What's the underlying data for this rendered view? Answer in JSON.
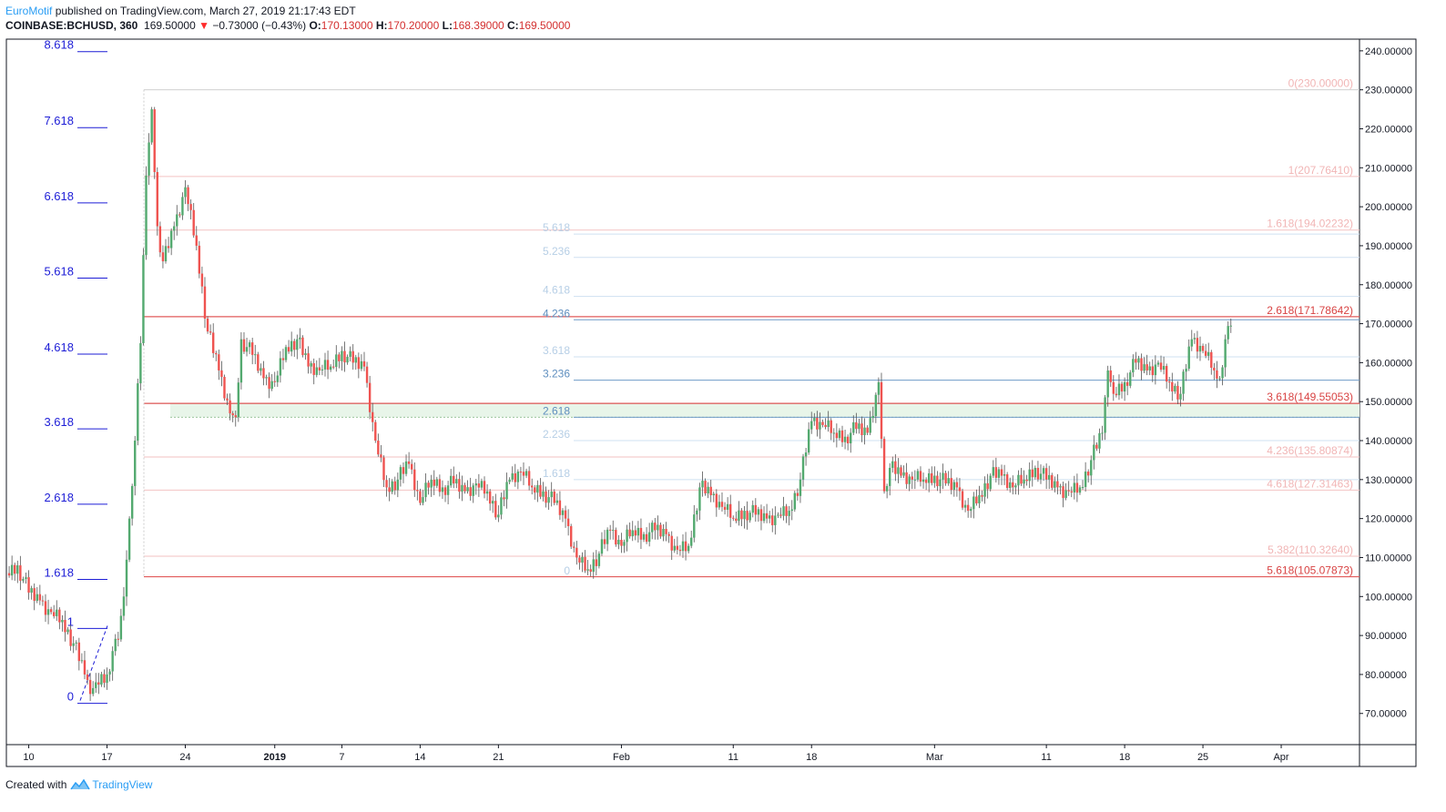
{
  "header": {
    "author": "EuroMotif",
    "published": " published on TradingView.com, March 27, 2019 21:17:43 EDT",
    "symbol": "COINBASE:BCHUSD, 360",
    "last": "169.50000",
    "change": "−0.73000 (−0.43%)",
    "o_label": "O:",
    "o": "170.13000",
    "h_label": "H:",
    "h": "170.20000",
    "l_label": "L:",
    "l": "168.39000",
    "c_label": "C:",
    "c": "169.50000"
  },
  "footer": {
    "created_with": "Created with",
    "brand": "TradingView",
    "brand_icon": "tradingview-logo-icon"
  },
  "colors": {
    "up": "#53a96f",
    "down": "#ef5350",
    "axis": "#131722",
    "fib_left": "#1d1dd6",
    "fib_red": "#e57373",
    "fib_blue": "#90b8e0",
    "zone_fill": "#e8f5e9",
    "zone_line": "#9c7a6a"
  },
  "chart_data": {
    "type": "candlestick",
    "y_axis": {
      "min": 62,
      "max": 243,
      "position": "right",
      "ticks": [
        240,
        230,
        220,
        210,
        200,
        190,
        180,
        170,
        160,
        150,
        140,
        130,
        120,
        110,
        100,
        90,
        80,
        70
      ],
      "tick_labels": [
        "240.00000",
        "230.00000",
        "220.00000",
        "210.00000",
        "200.00000",
        "190.00000",
        "180.00000",
        "170.00000",
        "160.00000",
        "150.00000",
        "140.00000",
        "130.00000",
        "120.00000",
        "110.00000",
        "100.00000",
        "90.00000",
        "80.00000",
        "70.00000"
      ]
    },
    "x_axis": {
      "start": "2018-12-08",
      "end": "2019-04-08",
      "ticks": [
        {
          "date": "2018-12-10",
          "label": "10",
          "bold": false
        },
        {
          "date": "2018-12-17",
          "label": "17",
          "bold": false
        },
        {
          "date": "2018-12-24",
          "label": "24",
          "bold": false
        },
        {
          "date": "2019-01-01",
          "label": "2019",
          "bold": true
        },
        {
          "date": "2019-01-07",
          "label": "7",
          "bold": false
        },
        {
          "date": "2019-01-14",
          "label": "14",
          "bold": false
        },
        {
          "date": "2019-01-21",
          "label": "21",
          "bold": false
        },
        {
          "date": "2019-02-01",
          "label": "Feb",
          "bold": false
        },
        {
          "date": "2019-02-11",
          "label": "11",
          "bold": false
        },
        {
          "date": "2019-02-18",
          "label": "18",
          "bold": false
        },
        {
          "date": "2019-03-01",
          "label": "Mar",
          "bold": false
        },
        {
          "date": "2019-03-11",
          "label": "11",
          "bold": false
        },
        {
          "date": "2019-03-18",
          "label": "18",
          "bold": false
        },
        {
          "date": "2019-03-25",
          "label": "25",
          "bold": false
        },
        {
          "date": "2019-04-01",
          "label": "Apr",
          "bold": false
        }
      ]
    },
    "price_path": [
      {
        "date": "2018-12-08",
        "close": 106
      },
      {
        "date": "2018-12-09",
        "close": 108
      },
      {
        "date": "2018-12-10",
        "close": 101
      },
      {
        "date": "2018-12-11",
        "close": 99
      },
      {
        "date": "2018-12-12",
        "close": 96
      },
      {
        "date": "2018-12-13",
        "close": 94
      },
      {
        "date": "2018-12-14",
        "close": 88
      },
      {
        "date": "2018-12-15",
        "close": 80
      },
      {
        "date": "2018-12-15T12:00",
        "close": 75
      },
      {
        "date": "2018-12-16",
        "close": 78
      },
      {
        "date": "2018-12-17",
        "close": 80
      },
      {
        "date": "2018-12-17T12:00",
        "close": 86
      },
      {
        "date": "2018-12-18",
        "close": 89
      },
      {
        "date": "2018-12-18T12:00",
        "close": 100
      },
      {
        "date": "2018-12-19",
        "close": 120
      },
      {
        "date": "2018-12-19T12:00",
        "close": 140
      },
      {
        "date": "2018-12-20",
        "close": 165
      },
      {
        "date": "2018-12-20T12:00",
        "close": 208
      },
      {
        "date": "2018-12-21",
        "close": 225
      },
      {
        "date": "2018-12-21T12:00",
        "close": 195
      },
      {
        "date": "2018-12-22",
        "close": 186
      },
      {
        "date": "2018-12-23",
        "close": 195
      },
      {
        "date": "2018-12-24",
        "close": 205
      },
      {
        "date": "2018-12-25",
        "close": 190
      },
      {
        "date": "2018-12-26",
        "close": 168
      },
      {
        "date": "2018-12-27",
        "close": 158
      },
      {
        "date": "2018-12-28",
        "close": 147
      },
      {
        "date": "2018-12-28T12:00",
        "close": 146
      },
      {
        "date": "2018-12-29",
        "close": 166
      },
      {
        "date": "2018-12-30",
        "close": 162
      },
      {
        "date": "2018-12-31",
        "close": 156
      },
      {
        "date": "2019-01-01",
        "close": 155
      },
      {
        "date": "2019-01-02",
        "close": 164
      },
      {
        "date": "2019-01-03",
        "close": 166
      },
      {
        "date": "2019-01-04",
        "close": 159
      },
      {
        "date": "2019-01-05",
        "close": 158
      },
      {
        "date": "2019-01-06",
        "close": 159
      },
      {
        "date": "2019-01-07",
        "close": 163
      },
      {
        "date": "2019-01-08",
        "close": 160
      },
      {
        "date": "2019-01-09",
        "close": 159
      },
      {
        "date": "2019-01-10",
        "close": 140
      },
      {
        "date": "2019-01-11",
        "close": 128
      },
      {
        "date": "2019-01-12",
        "close": 130
      },
      {
        "date": "2019-01-13",
        "close": 134
      },
      {
        "date": "2019-01-14",
        "close": 124
      },
      {
        "date": "2019-01-15",
        "close": 130
      },
      {
        "date": "2019-01-16",
        "close": 128
      },
      {
        "date": "2019-01-17",
        "close": 129
      },
      {
        "date": "2019-01-18",
        "close": 127
      },
      {
        "date": "2019-01-19",
        "close": 129
      },
      {
        "date": "2019-01-20",
        "close": 127
      },
      {
        "date": "2019-01-21",
        "close": 121
      },
      {
        "date": "2019-01-22",
        "close": 130
      },
      {
        "date": "2019-01-23",
        "close": 132
      },
      {
        "date": "2019-01-24",
        "close": 128
      },
      {
        "date": "2019-01-25",
        "close": 127
      },
      {
        "date": "2019-01-26",
        "close": 124
      },
      {
        "date": "2019-01-27",
        "close": 120
      },
      {
        "date": "2019-01-28",
        "close": 110
      },
      {
        "date": "2019-01-29",
        "close": 107
      },
      {
        "date": "2019-01-30",
        "close": 111
      },
      {
        "date": "2019-01-31",
        "close": 117
      },
      {
        "date": "2019-02-01",
        "close": 113
      },
      {
        "date": "2019-02-02",
        "close": 117
      },
      {
        "date": "2019-02-03",
        "close": 116
      },
      {
        "date": "2019-02-04",
        "close": 117
      },
      {
        "date": "2019-02-05",
        "close": 116
      },
      {
        "date": "2019-02-06",
        "close": 112
      },
      {
        "date": "2019-02-07",
        "close": 113
      },
      {
        "date": "2019-02-08",
        "close": 128
      },
      {
        "date": "2019-02-09",
        "close": 126
      },
      {
        "date": "2019-02-10",
        "close": 123
      },
      {
        "date": "2019-02-11",
        "close": 120
      },
      {
        "date": "2019-02-12",
        "close": 122
      },
      {
        "date": "2019-02-13",
        "close": 121
      },
      {
        "date": "2019-02-14",
        "close": 120
      },
      {
        "date": "2019-02-15",
        "close": 121
      },
      {
        "date": "2019-02-16",
        "close": 122
      },
      {
        "date": "2019-02-17",
        "close": 130
      },
      {
        "date": "2019-02-18",
        "close": 145
      },
      {
        "date": "2019-02-19",
        "close": 144
      },
      {
        "date": "2019-02-20",
        "close": 142
      },
      {
        "date": "2019-02-21",
        "close": 141
      },
      {
        "date": "2019-02-22",
        "close": 143
      },
      {
        "date": "2019-02-23",
        "close": 142
      },
      {
        "date": "2019-02-24",
        "close": 155
      },
      {
        "date": "2019-02-24T12:00",
        "close": 127
      },
      {
        "date": "2019-02-25",
        "close": 133
      },
      {
        "date": "2019-02-26",
        "close": 131
      },
      {
        "date": "2019-02-27",
        "close": 130
      },
      {
        "date": "2019-02-28",
        "close": 130
      },
      {
        "date": "2019-03-01",
        "close": 131
      },
      {
        "date": "2019-03-02",
        "close": 129
      },
      {
        "date": "2019-03-03",
        "close": 128
      },
      {
        "date": "2019-03-04",
        "close": 122
      },
      {
        "date": "2019-03-05",
        "close": 126
      },
      {
        "date": "2019-03-06",
        "close": 131
      },
      {
        "date": "2019-03-07",
        "close": 131
      },
      {
        "date": "2019-03-08",
        "close": 128
      },
      {
        "date": "2019-03-09",
        "close": 130
      },
      {
        "date": "2019-03-10",
        "close": 133
      },
      {
        "date": "2019-03-11",
        "close": 130
      },
      {
        "date": "2019-03-12",
        "close": 128
      },
      {
        "date": "2019-03-13",
        "close": 127
      },
      {
        "date": "2019-03-14",
        "close": 128
      },
      {
        "date": "2019-03-15",
        "close": 135
      },
      {
        "date": "2019-03-16",
        "close": 142
      },
      {
        "date": "2019-03-16T12:00",
        "close": 158
      },
      {
        "date": "2019-03-17",
        "close": 152
      },
      {
        "date": "2019-03-18",
        "close": 155
      },
      {
        "date": "2019-03-19",
        "close": 160
      },
      {
        "date": "2019-03-20",
        "close": 158
      },
      {
        "date": "2019-03-21",
        "close": 160
      },
      {
        "date": "2019-03-22",
        "close": 155
      },
      {
        "date": "2019-03-23",
        "close": 152
      },
      {
        "date": "2019-03-24",
        "close": 166
      },
      {
        "date": "2019-03-25",
        "close": 163
      },
      {
        "date": "2019-03-26",
        "close": 158
      },
      {
        "date": "2019-03-26T12:00",
        "close": 156
      },
      {
        "date": "2019-03-27",
        "close": 166
      },
      {
        "date": "2019-03-27T12:00",
        "close": 169.5
      }
    ],
    "fib_left": {
      "levels": [
        {
          "label": "8.618",
          "value": 240.5
        },
        {
          "label": "7.618",
          "value": 221
        },
        {
          "label": "6.618",
          "value": 201.7
        },
        {
          "label": "5.618",
          "value": 182.4
        },
        {
          "label": "4.618",
          "value": 162.9
        },
        {
          "label": "3.618",
          "value": 143.7
        },
        {
          "label": "2.618",
          "value": 124.4
        },
        {
          "label": "1.618",
          "value": 105.1
        },
        {
          "label": "1",
          "value": 92.5
        },
        {
          "label": "0",
          "value": 73.3
        }
      ]
    },
    "fib_red": {
      "levels": [
        {
          "label": "0(230.00000)",
          "value": 230
        },
        {
          "label": "1(207.76410)",
          "value": 207.76
        },
        {
          "label": "1.618(194.02232)",
          "value": 194.02
        },
        {
          "label": "2.618(171.78642)",
          "value": 171.79
        },
        {
          "label": "3.618(149.55053)",
          "value": 149.55
        },
        {
          "label": "4.236(135.80874)",
          "value": 135.81
        },
        {
          "label": "4.618(127.31463)",
          "value": 127.31
        },
        {
          "label": "5.382(110.32640)",
          "value": 110.33
        },
        {
          "label": "5.618(105.07873)",
          "value": 105.08
        }
      ]
    },
    "fib_blue": {
      "levels": [
        {
          "label": "5.618",
          "value": 193
        },
        {
          "label": "5.236",
          "value": 187
        },
        {
          "label": "4.618",
          "value": 177
        },
        {
          "label": "4.236",
          "value": 171
        },
        {
          "label": "3.618",
          "value": 161.5
        },
        {
          "label": "3.236",
          "value": 155.5
        },
        {
          "label": "2.618",
          "value": 146
        },
        {
          "label": "2.236",
          "value": 140
        },
        {
          "label": "1.618",
          "value": 130
        },
        {
          "label": "0",
          "value": 105
        }
      ]
    },
    "zone": {
      "top": 149.55,
      "bottom": 146
    }
  }
}
